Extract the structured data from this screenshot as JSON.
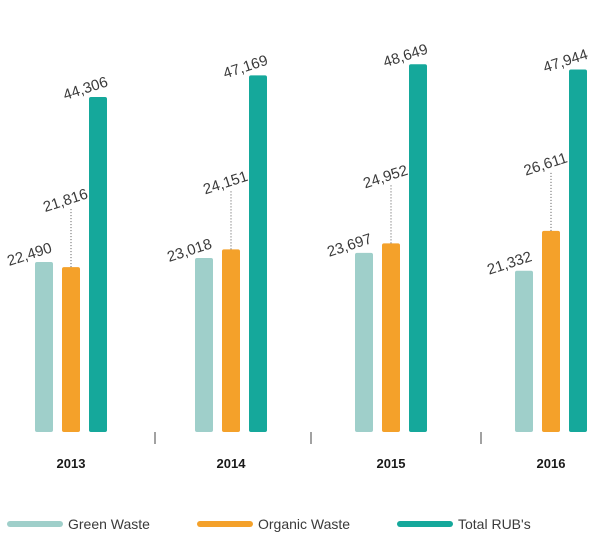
{
  "chart_data": {
    "type": "bar",
    "categories": [
      "2013",
      "2014",
      "2015",
      "2016"
    ],
    "series": [
      {
        "name": "Green Waste",
        "values": [
          22490,
          23018,
          23697,
          21332
        ],
        "labels": [
          "22,490",
          "23,018",
          "23,697",
          "21,332"
        ],
        "color": "#9fcfca"
      },
      {
        "name": "Organic Waste",
        "values": [
          21816,
          24151,
          24952,
          26611
        ],
        "labels": [
          "21,816",
          "24,151",
          "24,952",
          "26,611"
        ],
        "color": "#f4a12a"
      },
      {
        "name": "Total RUB's",
        "values": [
          44306,
          47169,
          48649,
          47944
        ],
        "labels": [
          "44,306",
          "47,169",
          "48,649",
          "47,944"
        ],
        "color": "#15a89b"
      }
    ],
    "ylim": [
      0,
      50000
    ],
    "grid": false,
    "legend_position": "bottom",
    "title": "",
    "xlabel": "",
    "ylabel": ""
  }
}
